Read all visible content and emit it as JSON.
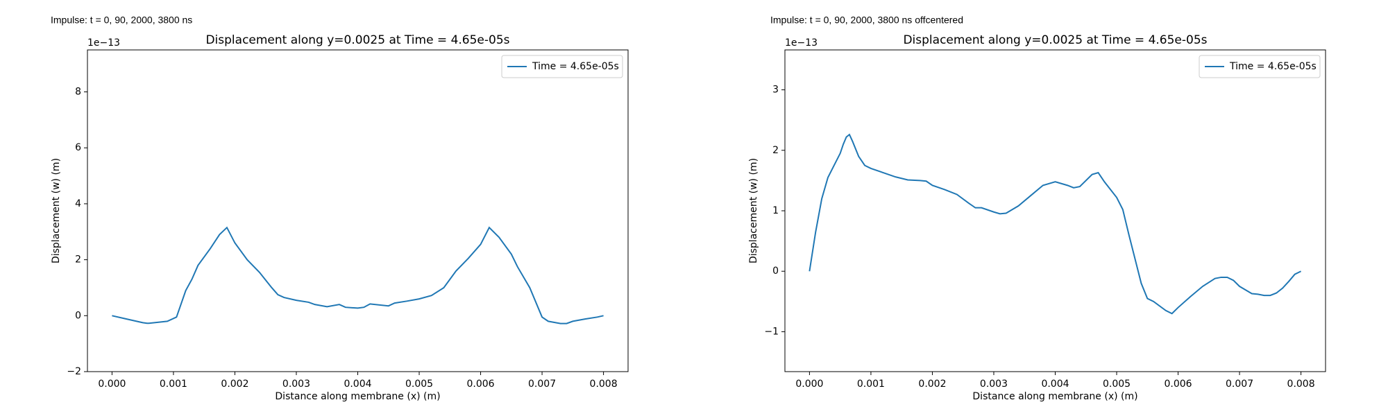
{
  "chart_data": [
    {
      "type": "line",
      "annotation": "Impulse: t = 0, 90, 2000, 3800 ns",
      "title": "Displacement along y=0.0025 at Time = 4.65e-05s",
      "xlabel": "Distance along membrane (x) (m)",
      "ylabel": "Displacement (w) (m)",
      "y_offset_label": "1e−13",
      "x": [
        0,
        0.0002,
        0.0004,
        0.0005,
        0.00057,
        0.0006,
        0.0009,
        0.00105,
        0.0012,
        0.0013,
        0.0014,
        0.0016,
        0.00175,
        0.00187,
        0.002,
        0.0022,
        0.0024,
        0.0026,
        0.0027,
        0.0028,
        0.003,
        0.0032,
        0.0033,
        0.0035,
        0.0037,
        0.0038,
        0.004,
        0.0041,
        0.0042,
        0.0045,
        0.0046,
        0.0048,
        0.005,
        0.0052,
        0.0054,
        0.0056,
        0.0058,
        0.006,
        0.00614,
        0.0063,
        0.0065,
        0.0066,
        0.0068,
        0.007,
        0.0071,
        0.0073,
        0.0074,
        0.0075,
        0.0077,
        0.0079,
        0.008
      ],
      "series": [
        {
          "name": "Time = 4.65e-05s",
          "color": "#1f77b4",
          "values": [
            0,
            -0.1,
            -0.2,
            -0.25,
            -0.27,
            -0.27,
            -0.2,
            -0.05,
            0.9,
            1.3,
            1.8,
            2.4,
            2.9,
            3.15,
            2.6,
            2.0,
            1.55,
            1.0,
            0.75,
            0.65,
            0.55,
            0.48,
            0.4,
            0.32,
            0.4,
            0.3,
            0.27,
            0.3,
            0.42,
            0.35,
            0.45,
            0.52,
            0.6,
            0.72,
            1.0,
            1.6,
            2.05,
            2.55,
            3.15,
            2.8,
            2.2,
            1.75,
            1.0,
            -0.05,
            -0.2,
            -0.28,
            -0.28,
            -0.2,
            -0.12,
            -0.05,
            0
          ]
        }
      ],
      "xlim": [
        -0.0004,
        0.0084
      ],
      "xticks": [
        {
          "value": 0,
          "label": "0.000"
        },
        {
          "value": 0.001,
          "label": "0.001"
        },
        {
          "value": 0.002,
          "label": "0.002"
        },
        {
          "value": 0.003,
          "label": "0.003"
        },
        {
          "value": 0.004,
          "label": "0.004"
        },
        {
          "value": 0.005,
          "label": "0.005"
        },
        {
          "value": 0.006,
          "label": "0.006"
        },
        {
          "value": 0.007,
          "label": "0.007"
        },
        {
          "value": 0.008,
          "label": "0.008"
        }
      ],
      "ylim": [
        -2,
        9.5
      ],
      "yticks": [
        {
          "value": -2,
          "label": "−2"
        },
        0,
        2,
        4,
        6,
        8
      ],
      "grid": false,
      "legend": "upper right"
    },
    {
      "type": "line",
      "annotation": "Impulse: t = 0, 90, 2000, 3800 ns offcentered",
      "title": "Displacement along y=0.0025 at Time = 4.65e-05s",
      "xlabel": "Distance along membrane (x) (m)",
      "ylabel": "Displacement (w) (m)",
      "y_offset_label": "1e−13",
      "x": [
        0,
        0.0001,
        0.0002,
        0.0003,
        0.0004,
        0.0005,
        0.00055,
        0.0006,
        0.00065,
        0.0007,
        0.0008,
        0.0009,
        0.001,
        0.0012,
        0.0014,
        0.0016,
        0.0018,
        0.0019,
        0.002,
        0.0022,
        0.0024,
        0.0026,
        0.0027,
        0.0028,
        0.003,
        0.0031,
        0.0032,
        0.0034,
        0.0036,
        0.0038,
        0.004,
        0.0042,
        0.0043,
        0.0044,
        0.0046,
        0.0047,
        0.0048,
        0.005,
        0.0051,
        0.0052,
        0.0053,
        0.0054,
        0.0055,
        0.0056,
        0.0058,
        0.0059,
        0.006,
        0.0062,
        0.0064,
        0.0066,
        0.0067,
        0.0068,
        0.0069,
        0.007,
        0.0072,
        0.0073,
        0.0074,
        0.0075,
        0.0076,
        0.0077,
        0.0078,
        0.0079,
        0.008
      ],
      "series": [
        {
          "name": "Time = 4.65e-05s",
          "color": "#1f77b4",
          "values": [
            0,
            0.65,
            1.2,
            1.55,
            1.75,
            1.95,
            2.1,
            2.22,
            2.26,
            2.15,
            1.9,
            1.75,
            1.7,
            1.63,
            1.56,
            1.51,
            1.5,
            1.49,
            1.42,
            1.35,
            1.27,
            1.12,
            1.05,
            1.05,
            0.98,
            0.95,
            0.96,
            1.08,
            1.25,
            1.42,
            1.48,
            1.42,
            1.38,
            1.4,
            1.6,
            1.63,
            1.48,
            1.22,
            1.02,
            0.6,
            0.2,
            -0.2,
            -0.45,
            -0.5,
            -0.65,
            -0.7,
            -0.6,
            -0.42,
            -0.25,
            -0.12,
            -0.1,
            -0.1,
            -0.15,
            -0.25,
            -0.37,
            -0.38,
            -0.4,
            -0.4,
            -0.36,
            -0.28,
            -0.17,
            -0.05,
            0
          ]
        }
      ],
      "xlim": [
        -0.0004,
        0.0084
      ],
      "xticks": [
        {
          "value": 0,
          "label": "0.000"
        },
        {
          "value": 0.001,
          "label": "0.001"
        },
        {
          "value": 0.002,
          "label": "0.002"
        },
        {
          "value": 0.003,
          "label": "0.003"
        },
        {
          "value": 0.004,
          "label": "0.004"
        },
        {
          "value": 0.005,
          "label": "0.005"
        },
        {
          "value": 0.006,
          "label": "0.006"
        },
        {
          "value": 0.007,
          "label": "0.007"
        },
        {
          "value": 0.008,
          "label": "0.008"
        }
      ],
      "ylim": [
        -1.66,
        3.66
      ],
      "yticks": [
        {
          "value": -1,
          "label": "−1"
        },
        0,
        1,
        2,
        3
      ],
      "grid": false,
      "legend": "upper right"
    }
  ]
}
